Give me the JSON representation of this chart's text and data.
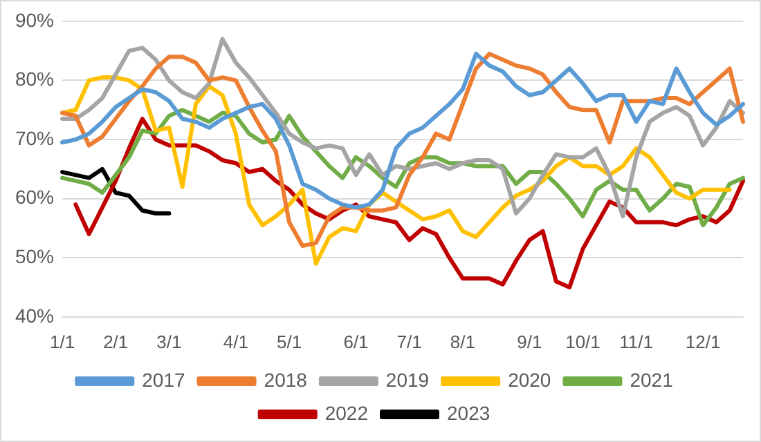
{
  "chart_data": {
    "type": "line",
    "ylim": [
      40,
      90
    ],
    "yticks": [
      {
        "value": 40,
        "label": "40%"
      },
      {
        "value": 50,
        "label": "50%"
      },
      {
        "value": 60,
        "label": "60%"
      },
      {
        "value": 70,
        "label": "70%"
      },
      {
        "value": 80,
        "label": "80%"
      },
      {
        "value": 90,
        "label": "90%"
      }
    ],
    "categories": [
      "1/1",
      null,
      null,
      null,
      "2/1",
      null,
      null,
      null,
      "3/1",
      null,
      null,
      null,
      null,
      "4/1",
      null,
      null,
      null,
      "5/1",
      null,
      null,
      null,
      null,
      "6/1",
      null,
      null,
      null,
      "7/1",
      null,
      null,
      null,
      "8/1",
      null,
      null,
      null,
      null,
      "9/1",
      null,
      null,
      null,
      "10/1",
      null,
      null,
      null,
      "11/1",
      null,
      null,
      null,
      null,
      "12/1",
      null,
      null,
      null
    ],
    "grid": "y",
    "legend": "bottom",
    "marker": "none",
    "line_style": "solid",
    "series": [
      {
        "name": "2017",
        "color": "#5b9bd5",
        "values": [
          69.5,
          70,
          71,
          73,
          75.5,
          77,
          78.5,
          78,
          76.5,
          73.5,
          73,
          72,
          73.5,
          74.5,
          75.5,
          76,
          73.5,
          69,
          62.5,
          61.5,
          60,
          59,
          58.5,
          59,
          61.5,
          68.5,
          71,
          72,
          74,
          76,
          78.5,
          84.5,
          82.5,
          81.5,
          79,
          77.5,
          78,
          80,
          82,
          79.5,
          76.5,
          77.5,
          77.5,
          73,
          76.5,
          76,
          82,
          78,
          74.5,
          72.5,
          74,
          76
        ]
      },
      {
        "name": "2018",
        "color": "#ed7d31",
        "values": [
          74.5,
          74,
          69,
          70.5,
          73.5,
          76.5,
          79,
          82,
          84,
          84,
          83,
          80,
          80.5,
          80,
          75.5,
          71.5,
          68,
          56,
          52,
          52.5,
          57,
          58.5,
          58.5,
          58,
          58,
          58.5,
          64,
          67,
          71,
          70,
          76,
          82,
          84.5,
          83.5,
          82.5,
          82,
          81,
          78,
          75.5,
          75,
          75,
          69.5,
          76.5,
          76.5,
          76.5,
          77,
          77,
          76,
          78,
          80,
          82,
          73
        ]
      },
      {
        "name": "2019",
        "color": "#a5a5a5",
        "values": [
          73.5,
          73.5,
          75,
          77,
          81,
          85,
          85.5,
          83.5,
          80,
          78,
          77,
          79.5,
          87,
          83,
          80.5,
          77.5,
          74.5,
          71,
          69.5,
          68.5,
          69,
          68.5,
          64,
          67.5,
          64,
          65.5,
          65,
          65.5,
          66,
          65,
          66,
          66.5,
          66.5,
          65,
          57.5,
          60,
          64,
          67.5,
          67,
          67,
          68.5,
          64,
          57,
          67,
          73,
          74.5,
          75.5,
          74,
          69,
          72,
          76.5,
          74.5
        ]
      },
      {
        "name": "2020",
        "color": "#ffc000",
        "values": [
          74.5,
          75,
          80,
          80.5,
          80.5,
          80,
          78.5,
          71.5,
          72,
          62,
          76,
          79,
          77.5,
          71,
          59,
          55.5,
          57,
          59,
          61.5,
          49,
          53.5,
          55,
          54.5,
          59,
          61,
          59.5,
          58,
          56.5,
          57,
          58,
          54.5,
          53.5,
          56,
          58.5,
          60.5,
          61.5,
          63,
          65.5,
          67,
          65.5,
          65.5,
          64,
          65.5,
          68.5,
          67,
          64,
          61,
          60,
          61.5,
          61.5,
          61.5,
          null
        ]
      },
      {
        "name": "2021",
        "color": "#70ad47",
        "values": [
          63.5,
          63,
          62.5,
          61,
          64,
          67,
          71.5,
          71,
          74,
          75,
          74,
          73,
          74.5,
          74,
          71,
          69.5,
          70,
          74,
          70.5,
          68,
          65.5,
          63.5,
          67,
          65.5,
          63.5,
          62,
          66,
          67,
          67,
          66,
          66,
          65.5,
          65.5,
          65.5,
          62.5,
          64.5,
          64.5,
          62.5,
          60,
          57,
          61.5,
          63,
          61.5,
          61.5,
          58,
          60,
          62.5,
          62,
          55.5,
          58.5,
          62.5,
          63.5
        ]
      },
      {
        "name": "2022",
        "color": "#c00000",
        "values": [
          null,
          59,
          54,
          58.5,
          63,
          68.5,
          73.5,
          70,
          69,
          69,
          69,
          68,
          66.5,
          66,
          64.5,
          65,
          63,
          61.5,
          59,
          57.5,
          56.5,
          58,
          59,
          57,
          56.5,
          56,
          53,
          55,
          54,
          50,
          46.5,
          46.5,
          46.5,
          45.5,
          49.5,
          53,
          54.5,
          46,
          45,
          51.5,
          55.5,
          59.5,
          58.5,
          56,
          56,
          56,
          55.5,
          56.5,
          57,
          56,
          58,
          63
        ]
      },
      {
        "name": "2023",
        "color": "#000000",
        "values": [
          64.5,
          64,
          63.5,
          65,
          61,
          60.5,
          58,
          57.5,
          57.5,
          null,
          null,
          null,
          null,
          null,
          null,
          null,
          null,
          null,
          null,
          null,
          null,
          null,
          null,
          null,
          null,
          null,
          null,
          null,
          null,
          null,
          null,
          null,
          null,
          null,
          null,
          null,
          null,
          null,
          null,
          null,
          null,
          null,
          null,
          null,
          null,
          null,
          null,
          null,
          null,
          null,
          null,
          null
        ]
      }
    ]
  }
}
